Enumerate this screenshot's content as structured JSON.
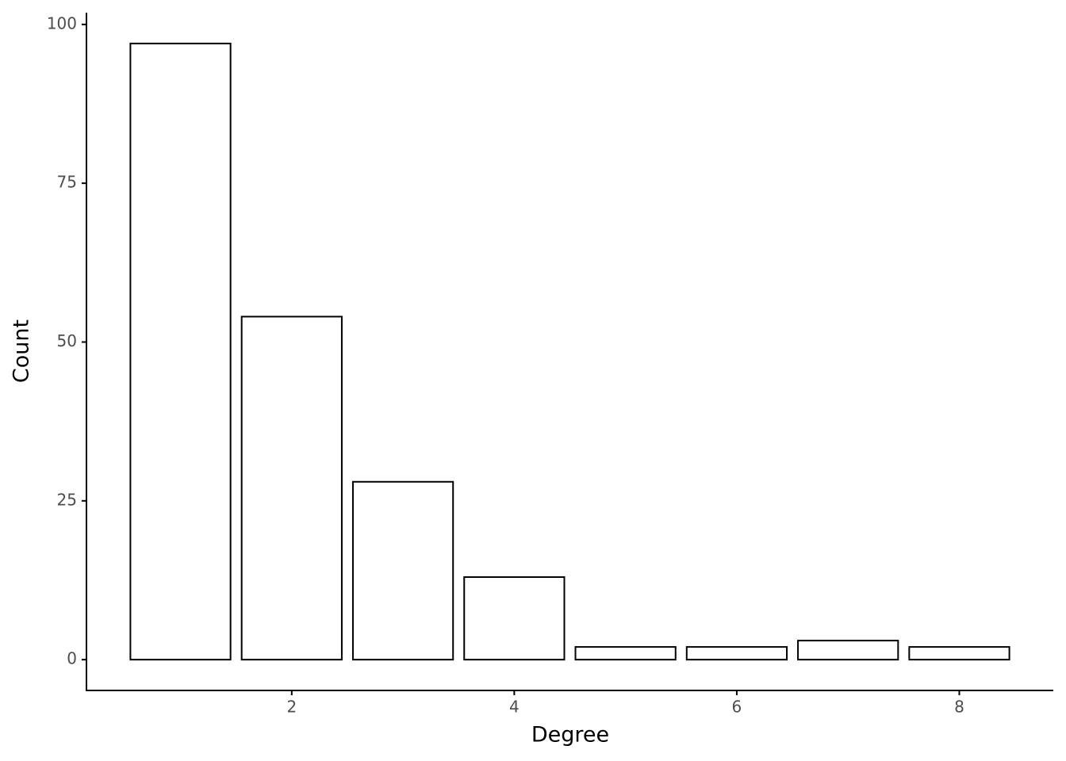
{
  "chart_data": {
    "type": "bar",
    "x_label": "Degree",
    "y_label": "Count",
    "x": [
      1,
      2,
      3,
      4,
      5,
      6,
      7,
      8
    ],
    "values": [
      97,
      54,
      28,
      13,
      2,
      2,
      3,
      2
    ],
    "color": "#ffffff",
    "edge_color": "#000000",
    "xlim": [
      0.155,
      8.845
    ],
    "ylim": [
      -4.85,
      101.85
    ],
    "xticks": [
      2,
      4,
      6,
      8
    ],
    "yticks": [
      0,
      25,
      50,
      75,
      100
    ],
    "grid": false
  }
}
